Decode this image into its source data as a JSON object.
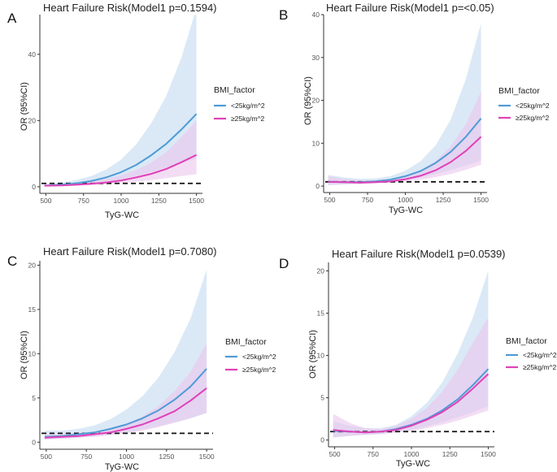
{
  "figure": {
    "colors": {
      "series_under": "#4f9bd6",
      "series_over": "#e040b8",
      "band_under": "#cfe1f4",
      "band_over": "#e9c6ec",
      "reference_line": "#111111"
    }
  },
  "chart_data": [
    {
      "panel": "A",
      "type": "line",
      "title": "Heart Failure Risk(Model1 p=0.1594)",
      "xlabel": "TyG-WC",
      "ylabel": "OR (95%CI)",
      "xlim": [
        460,
        1540
      ],
      "ylim": [
        -2,
        52
      ],
      "xticks": [
        500,
        750,
        1000,
        1250,
        1500
      ],
      "yticks": [
        0,
        20,
        40
      ],
      "reference_y": 1,
      "legend": {
        "title": "BMI_factor",
        "position": "right"
      },
      "x": [
        490,
        600,
        700,
        800,
        900,
        1000,
        1100,
        1200,
        1300,
        1400,
        1500
      ],
      "series": [
        {
          "name": "<25kg/m^2",
          "values": [
            0.3,
            0.6,
            1.0,
            1.7,
            2.8,
            4.4,
            6.6,
            9.5,
            13.0,
            17.3,
            22.0
          ],
          "lower": [
            0.1,
            0.3,
            0.6,
            1.0,
            1.6,
            2.3,
            3.3,
            4.5,
            5.8,
            7.2,
            8.5
          ],
          "upper": [
            0.8,
            1.3,
            2.0,
            3.2,
            5.2,
            8.2,
            12.8,
            19.2,
            27.5,
            39.0,
            54.0
          ]
        },
        {
          "name": "≥25kg/m^2",
          "values": [
            0.3,
            0.4,
            0.6,
            0.9,
            1.3,
            1.9,
            2.8,
            3.9,
            5.4,
            7.4,
            9.6
          ],
          "lower": [
            0.1,
            0.2,
            0.3,
            0.5,
            0.8,
            1.1,
            1.5,
            2.0,
            2.6,
            3.2,
            3.8
          ],
          "upper": [
            0.6,
            0.8,
            1.1,
            1.6,
            2.3,
            3.4,
            5.0,
            7.3,
            10.5,
            15.0,
            20.0
          ]
        }
      ]
    },
    {
      "panel": "B",
      "type": "line",
      "title": "Heart Failure Risk(Model1 p=<0.05)",
      "xlabel": "TyG-WC",
      "ylabel": "OR (95%CI)",
      "xlim": [
        460,
        1540
      ],
      "ylim": [
        -1.5,
        40
      ],
      "xticks": [
        500,
        750,
        1000,
        1250,
        1500
      ],
      "yticks": [
        0,
        10,
        20,
        30,
        40
      ],
      "reference_y": 1,
      "legend": {
        "title": "BMI_factor",
        "position": "right"
      },
      "x": [
        490,
        600,
        700,
        800,
        900,
        1000,
        1100,
        1200,
        1300,
        1400,
        1500
      ],
      "series": [
        {
          "name": "<25kg/m^2",
          "values": [
            1.0,
            0.9,
            0.9,
            1.1,
            1.5,
            2.3,
            3.5,
            5.4,
            8.0,
            11.5,
            15.8
          ],
          "lower": [
            0.2,
            0.4,
            0.5,
            0.7,
            1.0,
            1.4,
            2.0,
            2.8,
            3.7,
            4.8,
            6.0
          ],
          "upper": [
            2.6,
            2.0,
            1.7,
            1.8,
            2.3,
            3.6,
            5.8,
            9.5,
            15.5,
            25.0,
            38.0
          ]
        },
        {
          "name": "≥25kg/m^2",
          "values": [
            1.0,
            0.9,
            0.8,
            0.9,
            1.1,
            1.6,
            2.4,
            3.7,
            5.6,
            8.2,
            11.5
          ],
          "lower": [
            0.3,
            0.5,
            0.5,
            0.6,
            0.8,
            1.1,
            1.5,
            2.1,
            2.8,
            3.8,
            5.0
          ],
          "upper": [
            2.3,
            1.6,
            1.3,
            1.3,
            1.6,
            2.3,
            3.6,
            5.8,
            9.3,
            14.5,
            22.0
          ]
        }
      ]
    },
    {
      "panel": "C",
      "type": "line",
      "title": "Heart Failure Risk(Model1 p=0.7080)",
      "xlabel": "TyG-WC",
      "ylabel": "OR (95%CI)",
      "xlim": [
        460,
        1540
      ],
      "ylim": [
        -0.8,
        20.5
      ],
      "xticks": [
        500,
        750,
        1000,
        1250,
        1500
      ],
      "yticks": [
        0,
        5,
        10,
        15,
        20
      ],
      "reference_y": 1,
      "legend": {
        "title": "BMI_factor",
        "position": "right"
      },
      "x": [
        490,
        600,
        700,
        800,
        900,
        1000,
        1100,
        1200,
        1300,
        1400,
        1500
      ],
      "series": [
        {
          "name": "<25kg/m^2",
          "values": [
            0.6,
            0.7,
            0.9,
            1.1,
            1.5,
            2.0,
            2.7,
            3.6,
            4.8,
            6.3,
            8.3
          ],
          "lower": [
            0.3,
            0.4,
            0.5,
            0.7,
            0.9,
            1.1,
            1.4,
            1.8,
            2.2,
            2.7,
            3.3
          ],
          "upper": [
            1.3,
            1.3,
            1.5,
            1.9,
            2.6,
            3.7,
            5.2,
            7.3,
            10.2,
            14.0,
            19.5
          ]
        },
        {
          "name": "≥25kg/m^2",
          "values": [
            0.5,
            0.6,
            0.7,
            0.9,
            1.1,
            1.5,
            2.0,
            2.7,
            3.5,
            4.7,
            6.1
          ],
          "lower": [
            0.3,
            0.4,
            0.5,
            0.6,
            0.8,
            1.0,
            1.3,
            1.7,
            2.2,
            2.7,
            3.3
          ],
          "upper": [
            0.9,
            0.9,
            1.0,
            1.2,
            1.6,
            2.1,
            2.9,
            4.1,
            5.8,
            8.0,
            11.2
          ]
        }
      ]
    },
    {
      "panel": "D",
      "type": "line",
      "title": "Heart Failure Risk(Model1 p=0.0539)",
      "xlabel": "TyG-WC",
      "ylabel": "OR (95%CI)",
      "xlim": [
        460,
        1540
      ],
      "ylim": [
        -0.8,
        21
      ],
      "xticks": [
        500,
        750,
        1000,
        1250,
        1500
      ],
      "yticks": [
        0,
        5,
        10,
        15,
        20
      ],
      "reference_y": 1,
      "legend": {
        "title": "BMI_factor",
        "position": "right"
      },
      "x": [
        490,
        600,
        700,
        800,
        900,
        1000,
        1100,
        1200,
        1300,
        1400,
        1500
      ],
      "series": [
        {
          "name": "<25kg/m^2",
          "values": [
            1.1,
            1.0,
            0.9,
            1.0,
            1.3,
            1.8,
            2.5,
            3.5,
            4.8,
            6.5,
            8.4
          ],
          "lower": [
            0.3,
            0.5,
            0.6,
            0.7,
            0.9,
            1.2,
            1.6,
            2.1,
            2.7,
            3.3,
            4.0
          ],
          "upper": [
            2.2,
            1.7,
            1.4,
            1.4,
            1.8,
            2.8,
            4.4,
            6.8,
            10.2,
            14.5,
            20.0
          ]
        },
        {
          "name": "≥25kg/m^2",
          "values": [
            1.2,
            1.0,
            0.9,
            1.0,
            1.2,
            1.7,
            2.4,
            3.3,
            4.5,
            6.1,
            7.8
          ],
          "lower": [
            0.3,
            0.5,
            0.6,
            0.7,
            0.9,
            1.1,
            1.4,
            1.8,
            2.3,
            2.9,
            3.5
          ],
          "upper": [
            3.1,
            2.0,
            1.4,
            1.3,
            1.7,
            2.5,
            3.8,
            5.7,
            8.3,
            11.5,
            14.5
          ]
        }
      ]
    }
  ]
}
